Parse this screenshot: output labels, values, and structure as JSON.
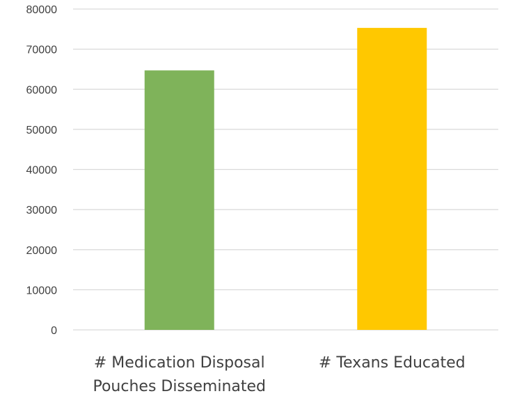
{
  "chart_data": {
    "type": "bar",
    "title": "",
    "xlabel": "",
    "ylabel": "",
    "categories": [
      [
        "# Medication Disposal",
        "Pouches Disseminated"
      ],
      [
        "# Texans Educated"
      ]
    ],
    "values": [
      64700,
      75300
    ],
    "colors": [
      "#7fb35a",
      "#ffc800"
    ],
    "ylim": [
      0,
      80000
    ],
    "yticks": [
      0,
      10000,
      20000,
      30000,
      40000,
      50000,
      60000,
      70000,
      80000
    ],
    "grid": true,
    "legend": "none"
  }
}
